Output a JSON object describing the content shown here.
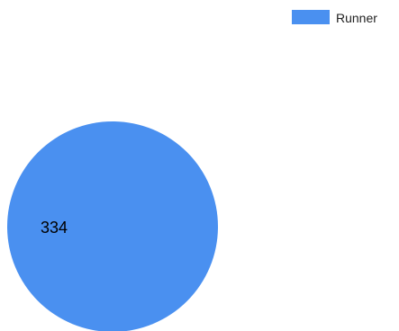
{
  "chart_data": {
    "type": "pie",
    "categories": [
      "Runner"
    ],
    "values": [
      334
    ],
    "series": [
      {
        "name": "Runner",
        "values": [
          334
        ]
      }
    ],
    "legend_position": "top-right",
    "colors": [
      "#4a90f0"
    ],
    "title": "",
    "xlabel": "",
    "ylabel": ""
  }
}
